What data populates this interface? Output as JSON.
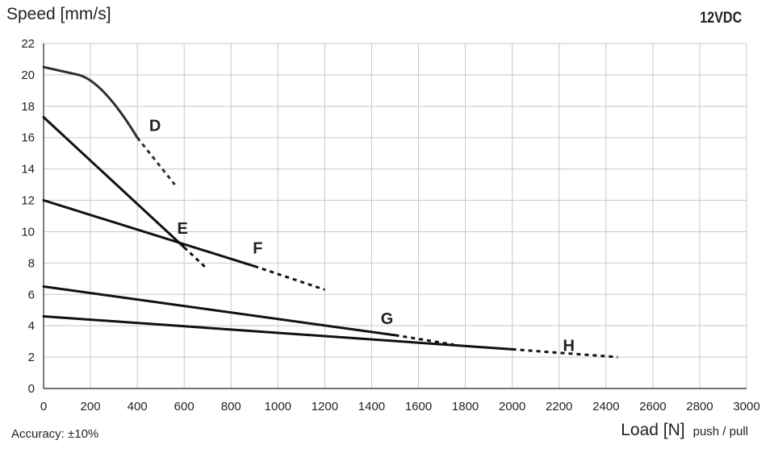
{
  "chart_data": {
    "type": "line",
    "ylabel": "Speed [mm/s]",
    "xlabel": "Load [N]",
    "xlabel_suffix": "push / pull",
    "annotation_top_right": "12VDC",
    "note": "Accuracy: ±10%",
    "xlim": [
      0,
      3000
    ],
    "ylim": [
      0,
      22
    ],
    "xticks": [
      "0",
      "200",
      "400",
      "600",
      "800",
      "1000",
      "1200",
      "1400",
      "1600",
      "1800",
      "2000",
      "2200",
      "2400",
      "2600",
      "2800",
      "3000"
    ],
    "yticks": [
      "0",
      "2",
      "4",
      "6",
      "8",
      "10",
      "12",
      "14",
      "16",
      "18",
      "20",
      "22"
    ],
    "grid": true,
    "series": [
      {
        "name": "D",
        "color": "#2b2d3a",
        "x": [
          0,
          150,
          200,
          400
        ],
        "y": [
          20.5,
          20.0,
          19.4,
          16.0
        ],
        "dashed_x": [
          400,
          560
        ],
        "dashed_y": [
          16.0,
          13.0
        ]
      },
      {
        "name": "E",
        "color": "#111111",
        "x": [
          0,
          600
        ],
        "y": [
          17.3,
          9.0
        ],
        "dashed_x": [
          600,
          700
        ],
        "dashed_y": [
          9.0,
          7.6
        ]
      },
      {
        "name": "F",
        "color": "#111111",
        "x": [
          0,
          900
        ],
        "y": [
          12.0,
          7.8
        ],
        "dashed_x": [
          900,
          1200
        ],
        "dashed_y": [
          7.8,
          6.3
        ]
      },
      {
        "name": "G",
        "color": "#111111",
        "x": [
          0,
          1500
        ],
        "y": [
          6.5,
          3.4
        ],
        "dashed_x": [
          1500,
          1750
        ],
        "dashed_y": [
          3.4,
          2.8
        ]
      },
      {
        "name": "H",
        "color": "#111111",
        "x": [
          0,
          2000
        ],
        "y": [
          4.6,
          2.5
        ],
        "dashed_x": [
          2000,
          2450
        ],
        "dashed_y": [
          2.5,
          2.0
        ]
      }
    ]
  }
}
